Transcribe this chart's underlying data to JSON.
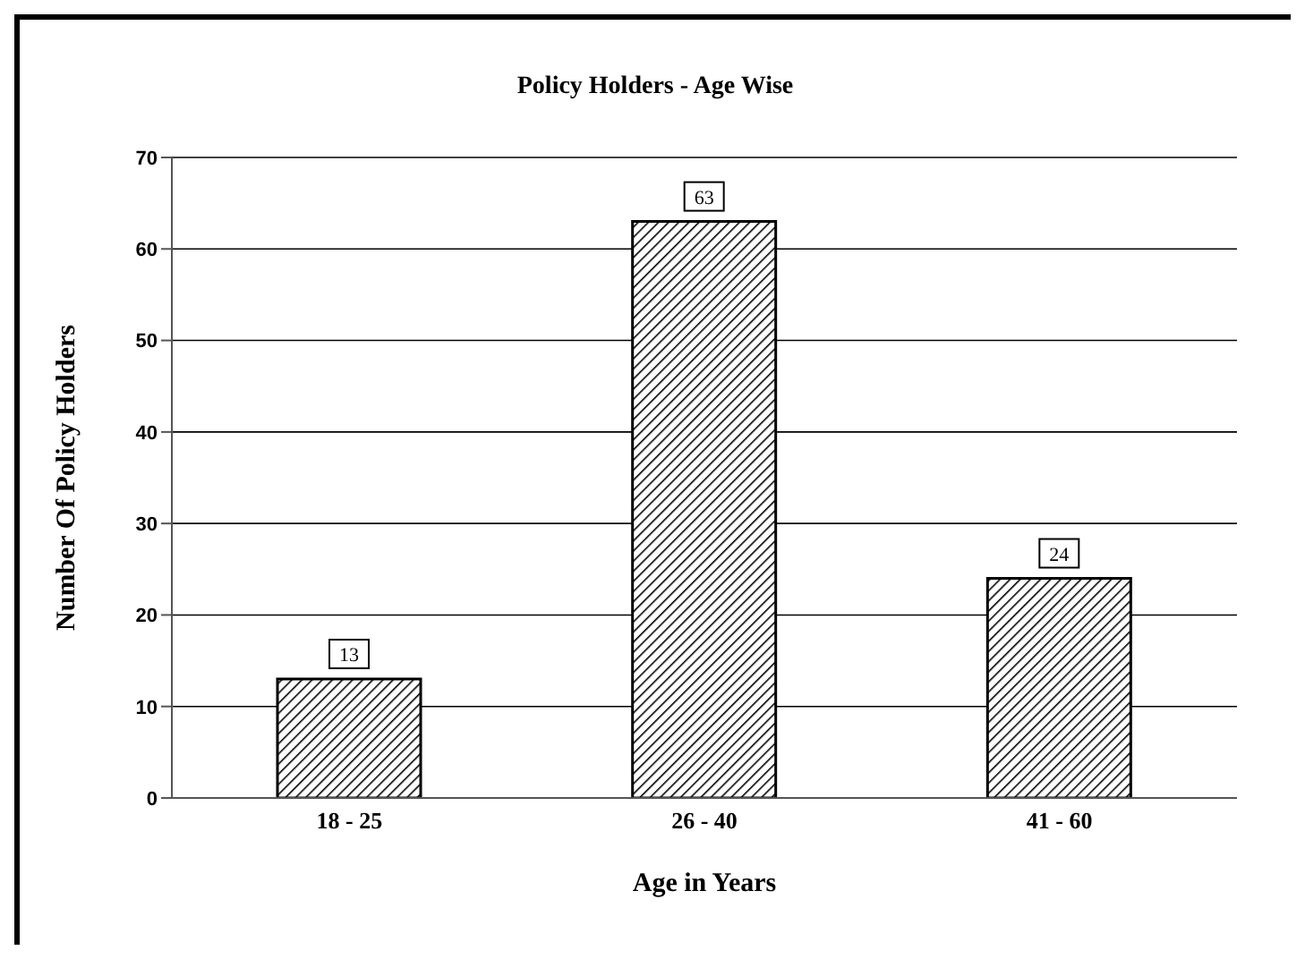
{
  "chart_data": {
    "type": "bar",
    "title": "Policy Holders - Age Wise",
    "xlabel": "Age in Years",
    "ylabel": "Number Of Policy Holders",
    "categories": [
      "18 - 25",
      "26 - 40",
      "41 - 60"
    ],
    "values": [
      13,
      63,
      24
    ],
    "color": "#000000",
    "ylim": [
      0,
      70
    ],
    "yticks": [
      0,
      10,
      20,
      30,
      40,
      50,
      60,
      70
    ],
    "grid": "y",
    "data_labels": true
  }
}
